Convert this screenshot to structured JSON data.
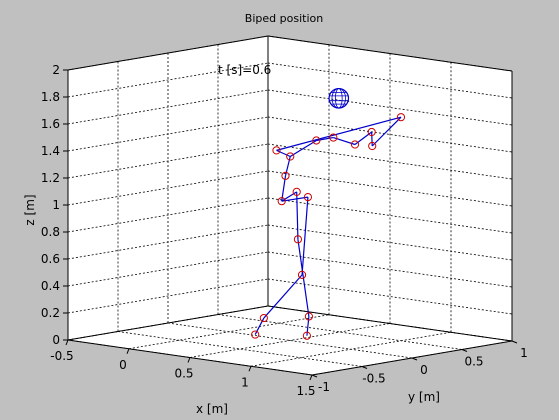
{
  "chart_data": {
    "type": "scatter",
    "title": "Biped position",
    "xlabel": "x [m]",
    "ylabel": "y [m]",
    "zlabel": "z [m]",
    "xlim": [
      -0.5,
      1.5
    ],
    "ylim": [
      -1,
      1
    ],
    "zlim": [
      0,
      2
    ],
    "x_ticks": [
      "-0.5",
      "0",
      "0.5",
      "1",
      "1.5"
    ],
    "y_ticks": [
      "-1",
      "-0.5",
      "0",
      "0.5",
      "1"
    ],
    "z_ticks": [
      "0",
      "0.2",
      "0.4",
      "0.6",
      "0.8",
      "1",
      "1.2",
      "1.4",
      "1.6",
      "1.8",
      "2"
    ],
    "grid": true,
    "annotation": "t [s]=0.6",
    "series": [
      {
        "color": "#0000cc",
        "marker_color": "#cc0000",
        "joints": [
          {
            "x": 0.19,
            "y": 0.03,
            "z": 0.0
          },
          {
            "x": 0.22,
            "y": 0.08,
            "z": 0.12
          },
          {
            "x": 0.32,
            "y": 0.34,
            "z": 0.42
          },
          {
            "x": 0.36,
            "y": 0.35,
            "z": 1.0
          },
          {
            "x": 0.45,
            "y": 0.23,
            "z": 0.0
          },
          {
            "x": 0.45,
            "y": 0.25,
            "z": 0.14
          },
          {
            "x": 0.36,
            "y": 0.25,
            "z": 0.7
          },
          {
            "x": 0.35,
            "y": 0.1,
            "z": 1.0
          },
          {
            "x": 0.35,
            "y": 0.25,
            "z": 1.05
          },
          {
            "x": 0.34,
            "y": 0.15,
            "z": 1.18
          },
          {
            "x": 0.42,
            "y": 0.1,
            "z": 1.34
          },
          {
            "x": 0.47,
            "y": 0.3,
            "z": 1.44
          },
          {
            "x": 0.47,
            "y": 0.47,
            "z": 1.44
          },
          {
            "x": 0.5,
            "y": 0.65,
            "z": 1.37
          },
          {
            "x": 0.53,
            "y": 0.78,
            "z": 1.45
          },
          {
            "x": 0.51,
            "y": 0.81,
            "z": 1.34
          },
          {
            "x": 0.59,
            "y": 1.0,
            "z": 1.54
          },
          {
            "x": 0.34,
            "y": 0.06,
            "z": 1.38
          }
        ],
        "bones": [
          [
            0,
            1
          ],
          [
            1,
            2
          ],
          [
            2,
            3
          ],
          [
            3,
            7
          ],
          [
            4,
            5
          ],
          [
            5,
            6
          ],
          [
            6,
            8
          ],
          [
            8,
            7
          ],
          [
            7,
            9
          ],
          [
            9,
            10
          ],
          [
            10,
            11
          ],
          [
            11,
            12
          ],
          [
            12,
            13
          ],
          [
            13,
            14
          ],
          [
            14,
            15
          ],
          [
            15,
            16
          ],
          [
            16,
            17
          ],
          [
            17,
            10
          ]
        ],
        "head": {
          "x": 0.49,
          "y": 0.5,
          "z": 1.73,
          "r": 0.09
        }
      }
    ]
  }
}
